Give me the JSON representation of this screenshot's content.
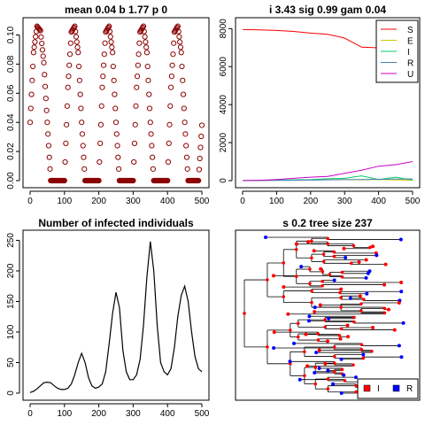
{
  "chart_data": [
    {
      "panel": "top-left",
      "type": "scatter",
      "title": "mean 0.04 b 1.77 p 0",
      "xlim": [
        0,
        500
      ],
      "ylim": [
        0,
        0.107
      ],
      "x_ticks": [
        0,
        100,
        200,
        300,
        400,
        500
      ],
      "y_ticks": [
        0.0,
        0.02,
        0.04,
        0.06,
        0.08,
        0.1
      ],
      "x_tick_labels": [
        "0",
        "100",
        "200",
        "300",
        "400",
        "500"
      ],
      "y_tick_labels": [
        "0.00",
        "0.02",
        "0.04",
        "0.06",
        "0.08",
        "0.10"
      ],
      "series": [
        {
          "marker": "open-circle",
          "color": "#8b0000",
          "x": [
            0,
            10,
            20,
            30,
            40,
            50,
            60,
            70,
            80,
            90,
            100,
            110,
            120,
            130,
            140,
            150,
            160,
            170,
            180,
            190,
            200,
            210,
            220,
            230,
            240,
            250,
            260,
            270,
            280,
            290,
            300,
            310,
            320,
            330,
            340,
            350,
            360,
            370,
            380,
            390,
            400,
            410,
            420,
            430,
            440,
            450,
            460,
            470,
            480,
            490,
            500
          ],
          "y": [
            0.04,
            0.088,
            0.106,
            0.103,
            0.081,
            0.04,
            0.0,
            0.0,
            0.0,
            0.0,
            0.0,
            0.064,
            0.102,
            0.106,
            0.088,
            0.04,
            0.0,
            0.0,
            0.0,
            0.0,
            0.0,
            0.064,
            0.102,
            0.106,
            0.088,
            0.04,
            0.0,
            0.0,
            0.0,
            0.0,
            0.0,
            0.064,
            0.102,
            0.106,
            0.088,
            0.04,
            0.0,
            0.0,
            0.0,
            0.0,
            0.0,
            0.064,
            0.102,
            0.106,
            0.088,
            0.04,
            0.0,
            0.0,
            0.0,
            0.0,
            0.038
          ]
        }
      ]
    },
    {
      "panel": "top-right",
      "type": "line",
      "title": "i 3.43 sig 0.99 gam 0.04",
      "xlim": [
        0,
        500
      ],
      "ylim": [
        0,
        8200
      ],
      "x_ticks": [
        0,
        100,
        200,
        300,
        400,
        500
      ],
      "y_ticks": [
        0,
        2000,
        4000,
        6000,
        8000
      ],
      "x_tick_labels": [
        "0",
        "100",
        "200",
        "300",
        "400",
        "500"
      ],
      "y_tick_labels": [
        "0",
        "2000",
        "4000",
        "6000",
        "8000"
      ],
      "legend": "top-right",
      "series": [
        {
          "name": "S",
          "color": "#ff0000",
          "x": [
            0,
            50,
            100,
            150,
            200,
            250,
            300,
            350,
            400,
            450,
            500
          ],
          "y": [
            7950,
            7930,
            7900,
            7850,
            7760,
            7700,
            7500,
            7020,
            6990,
            6970,
            6960
          ]
        },
        {
          "name": "E",
          "color": "#cdcd00",
          "x": [
            0,
            50,
            100,
            150,
            200,
            250,
            300,
            350,
            400,
            450,
            500
          ],
          "y": [
            5,
            10,
            20,
            30,
            40,
            50,
            60,
            40,
            60,
            40,
            20
          ]
        },
        {
          "name": "I",
          "color": "#00cd66",
          "x": [
            0,
            50,
            100,
            150,
            200,
            250,
            300,
            350,
            400,
            450,
            500
          ],
          "y": [
            5,
            20,
            30,
            40,
            50,
            100,
            120,
            250,
            60,
            180,
            30
          ]
        },
        {
          "name": "R",
          "color": "#4682b4",
          "x": [
            0,
            50,
            100,
            150,
            200,
            250,
            300,
            350,
            400,
            450,
            500
          ],
          "y": [
            0,
            5,
            10,
            20,
            30,
            40,
            50,
            60,
            70,
            80,
            90
          ]
        },
        {
          "name": "U",
          "color": "#cd00cd",
          "x": [
            0,
            50,
            100,
            150,
            200,
            250,
            300,
            350,
            400,
            450,
            500
          ],
          "y": [
            0,
            20,
            60,
            120,
            180,
            220,
            380,
            550,
            760,
            840,
            1000
          ]
        }
      ]
    },
    {
      "panel": "bottom-left",
      "type": "line",
      "title": "Number of infected individuals",
      "xlim": [
        0,
        500
      ],
      "ylim": [
        0,
        255
      ],
      "x_ticks": [
        0,
        100,
        200,
        300,
        400,
        500
      ],
      "y_ticks": [
        0,
        50,
        100,
        150,
        200,
        250
      ],
      "x_tick_labels": [
        "0",
        "100",
        "200",
        "300",
        "400",
        "500"
      ],
      "y_tick_labels": [
        "0",
        "50",
        "100",
        "150",
        "200",
        "250"
      ],
      "series": [
        {
          "color": "#000000",
          "x": [
            0,
            10,
            20,
            30,
            40,
            50,
            60,
            70,
            80,
            90,
            100,
            110,
            120,
            130,
            140,
            150,
            160,
            170,
            180,
            190,
            200,
            210,
            220,
            230,
            240,
            250,
            260,
            270,
            280,
            290,
            300,
            310,
            320,
            330,
            340,
            350,
            360,
            370,
            380,
            390,
            400,
            410,
            420,
            430,
            440,
            450,
            460,
            470,
            480,
            490,
            500
          ],
          "y": [
            1,
            3,
            7,
            12,
            17,
            18,
            17,
            12,
            8,
            6,
            6,
            8,
            15,
            30,
            50,
            65,
            50,
            25,
            12,
            8,
            10,
            15,
            35,
            80,
            130,
            165,
            140,
            70,
            35,
            22,
            22,
            30,
            55,
            110,
            190,
            248,
            200,
            110,
            50,
            35,
            30,
            40,
            75,
            125,
            160,
            175,
            150,
            100,
            60,
            40,
            35
          ]
        }
      ]
    },
    {
      "panel": "bottom-right",
      "type": "tree",
      "title": "s 0.2 tree size 237",
      "legend": "bottom-right",
      "legend_entries": [
        {
          "name": "I",
          "color": "#ff0000"
        },
        {
          "name": "R",
          "color": "#0000ff"
        }
      ]
    }
  ]
}
